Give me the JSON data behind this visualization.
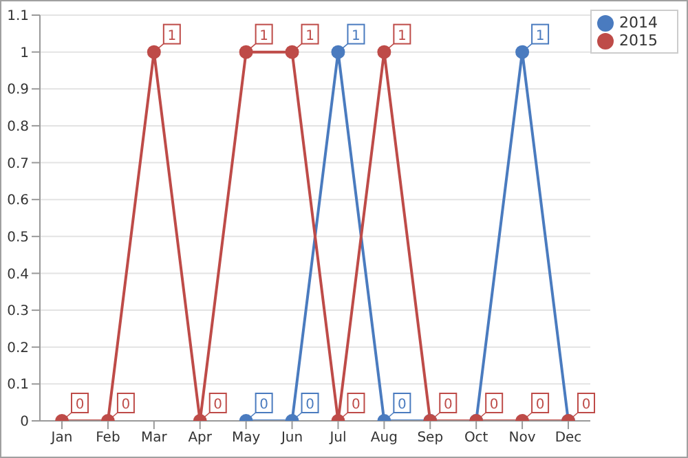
{
  "chart_data": {
    "type": "line",
    "categories": [
      "Jan",
      "Feb",
      "Mar",
      "Apr",
      "May",
      "Jun",
      "Jul",
      "Aug",
      "Sep",
      "Oct",
      "Nov",
      "Dec"
    ],
    "series": [
      {
        "name": "2014",
        "color": "#4a7bbf",
        "values": [
          null,
          null,
          null,
          null,
          0,
          0,
          1,
          0,
          0,
          0,
          1,
          0
        ],
        "value_labels": [
          null,
          null,
          null,
          null,
          "0",
          "0",
          "1",
          "0",
          null,
          null,
          "1",
          null
        ]
      },
      {
        "name": "2015",
        "color": "#be4b48",
        "values": [
          0,
          0,
          1,
          0,
          1,
          1,
          0,
          1,
          0,
          0,
          0,
          0
        ],
        "value_labels": [
          "0",
          "0",
          "1",
          "0",
          "1",
          "1",
          "0",
          "1",
          "0",
          "0",
          "0",
          "0"
        ]
      }
    ],
    "ylim": [
      0,
      1.1
    ],
    "yticks": [
      0,
      0.1,
      0.2,
      0.3,
      0.4,
      0.5,
      0.6,
      0.7,
      0.8,
      0.9,
      1,
      1.1
    ],
    "grid": "y",
    "legend": "top right",
    "marker": "circle",
    "line_style": "solid"
  }
}
